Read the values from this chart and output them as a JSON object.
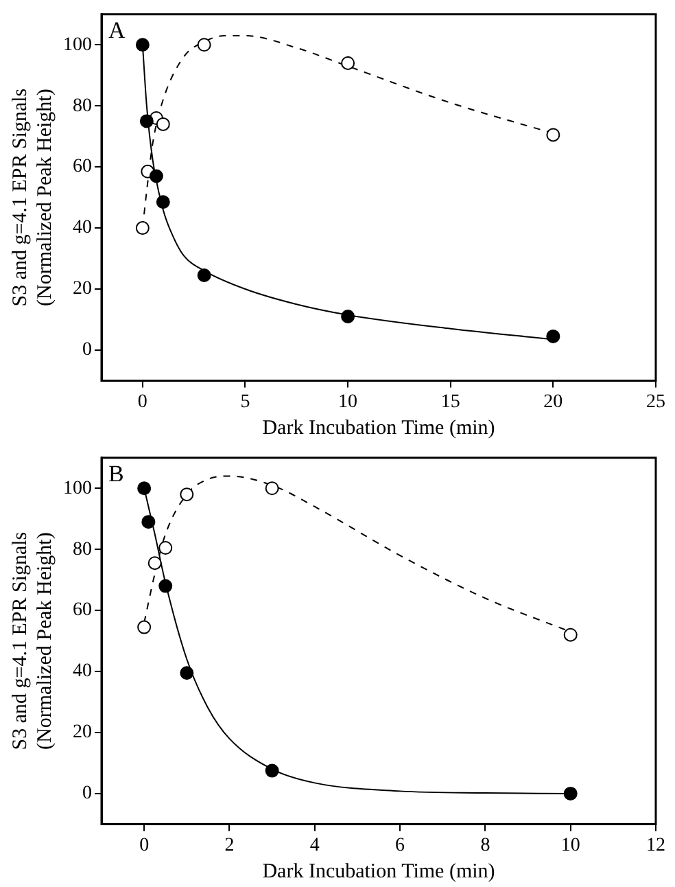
{
  "chart_data": [
    {
      "type": "scatter",
      "annotations": [
        "A"
      ],
      "xlabel": "Dark Incubation Time (min)",
      "ylabel": "S3 and g=4.1 EPR Signals\n(Normalized Peak Height)",
      "xlim": [
        -2,
        25
      ],
      "xticks": [
        0,
        5,
        10,
        15,
        20,
        25
      ],
      "ylim": [
        -10,
        110
      ],
      "yticks": [
        0,
        20,
        40,
        60,
        80,
        100
      ],
      "grid": false,
      "legend": false,
      "series": [
        {
          "type": "line",
          "color": "#000000",
          "line_style": "solid",
          "marker": "none",
          "x": [
            0,
            0.2,
            0.5,
            1,
            1.5,
            2,
            3,
            5,
            7.5,
            10,
            15,
            20
          ],
          "values": [
            100,
            80,
            62,
            46,
            37,
            31,
            26,
            20,
            15,
            11.5,
            7,
            3.5
          ]
        },
        {
          "type": "line",
          "color": "#000000",
          "line_style": "dashed",
          "marker": "none",
          "x": [
            0,
            0.25,
            0.5,
            1,
            2,
            3,
            4,
            5,
            7.5,
            10,
            15,
            20
          ],
          "values": [
            40,
            55,
            68,
            82,
            96,
            101,
            103,
            103,
            99,
            93,
            81,
            71
          ]
        },
        {
          "type": "scatter",
          "color": "#000000",
          "marker": "circle",
          "x": [
            0,
            0.2,
            0.67,
            1,
            3,
            10,
            20
          ],
          "values": [
            100,
            75,
            57,
            48.5,
            24.5,
            11,
            4.5
          ]
        },
        {
          "type": "scatter",
          "color": "#ffffff",
          "marker": "circle",
          "x": [
            0,
            0.25,
            0.67,
            1,
            3,
            10,
            20
          ],
          "values": [
            40,
            58.5,
            76,
            74,
            100,
            94,
            70.5
          ]
        }
      ]
    },
    {
      "type": "scatter",
      "annotations": [
        "B"
      ],
      "xlabel": "Dark Incubation Time (min)",
      "ylabel": "S3 and g=4.1 EPR Signals\n(Normalized Peak Height)",
      "xlim": [
        -1,
        12
      ],
      "xticks": [
        0,
        2,
        4,
        6,
        8,
        10,
        12
      ],
      "ylim": [
        -10,
        110
      ],
      "yticks": [
        0,
        20,
        40,
        60,
        80,
        100
      ],
      "grid": false,
      "legend": false,
      "series": [
        {
          "type": "line",
          "color": "#000000",
          "line_style": "solid",
          "marker": "none",
          "x": [
            0,
            0.25,
            0.5,
            1,
            1.5,
            2,
            3,
            4,
            6,
            8,
            10
          ],
          "values": [
            100,
            85,
            69,
            44,
            28,
            18,
            8,
            3.5,
            0.8,
            0.2,
            0
          ]
        },
        {
          "type": "line",
          "color": "#000000",
          "line_style": "dashed",
          "marker": "none",
          "x": [
            0,
            0.25,
            0.5,
            1,
            1.5,
            2,
            3,
            4,
            6,
            8,
            10
          ],
          "values": [
            56,
            72,
            85,
            98,
            103,
            104,
            101,
            94,
            78,
            64,
            53
          ]
        },
        {
          "type": "scatter",
          "color": "#000000",
          "marker": "circle",
          "x": [
            0,
            0.1,
            0.5,
            1,
            3,
            10
          ],
          "values": [
            100,
            89,
            68,
            39.5,
            7.5,
            0
          ]
        },
        {
          "type": "scatter",
          "color": "#ffffff",
          "marker": "circle",
          "x": [
            0,
            0.25,
            0.5,
            1,
            3,
            10
          ],
          "values": [
            54.5,
            75.5,
            80.5,
            98,
            100,
            52
          ]
        }
      ]
    }
  ]
}
